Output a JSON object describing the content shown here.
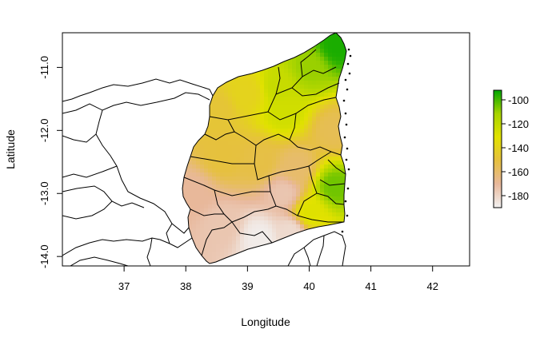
{
  "chart_data": {
    "type": "heatmap",
    "title": "",
    "xlabel": "Longitude",
    "ylabel": "Latitude",
    "xlim": [
      36.0,
      42.6
    ],
    "ylim": [
      -14.15,
      -10.45
    ],
    "xticks": [
      "37",
      "38",
      "39",
      "40",
      "41",
      "42"
    ],
    "yticks": [
      "-11.0",
      "-12.0",
      "-13.0",
      "-14.0"
    ],
    "legend": {
      "position": "right",
      "range": [
        -190,
        -92
      ],
      "ticks": [
        "-100",
        "-120",
        "-140",
        "-160",
        "-180"
      ],
      "colors": [
        "#f2f2f2",
        "#e8b89c",
        "#e6c040",
        "#e2e200",
        "#a8d400",
        "#00a600"
      ]
    },
    "field_samples": [
      {
        "lon": 40.45,
        "lat": -10.65,
        "value": -95
      },
      {
        "lon": 40.0,
        "lat": -11.0,
        "value": -110
      },
      {
        "lon": 39.5,
        "lat": -11.3,
        "value": -122
      },
      {
        "lon": 39.0,
        "lat": -11.4,
        "value": -140
      },
      {
        "lon": 38.5,
        "lat": -11.7,
        "value": -148
      },
      {
        "lon": 39.6,
        "lat": -11.7,
        "value": -125
      },
      {
        "lon": 40.4,
        "lat": -12.0,
        "value": -155
      },
      {
        "lon": 38.6,
        "lat": -12.4,
        "value": -150
      },
      {
        "lon": 39.2,
        "lat": -12.5,
        "value": -152
      },
      {
        "lon": 39.8,
        "lat": -12.6,
        "value": -160
      },
      {
        "lon": 40.4,
        "lat": -12.9,
        "value": -105
      },
      {
        "lon": 38.1,
        "lat": -13.0,
        "value": -170
      },
      {
        "lon": 39.6,
        "lat": -13.0,
        "value": -175
      },
      {
        "lon": 40.0,
        "lat": -13.3,
        "value": -130
      },
      {
        "lon": 38.6,
        "lat": -13.5,
        "value": -175
      },
      {
        "lon": 39.2,
        "lat": -13.7,
        "value": -188
      },
      {
        "lon": 39.7,
        "lat": -13.6,
        "value": -182
      }
    ]
  }
}
